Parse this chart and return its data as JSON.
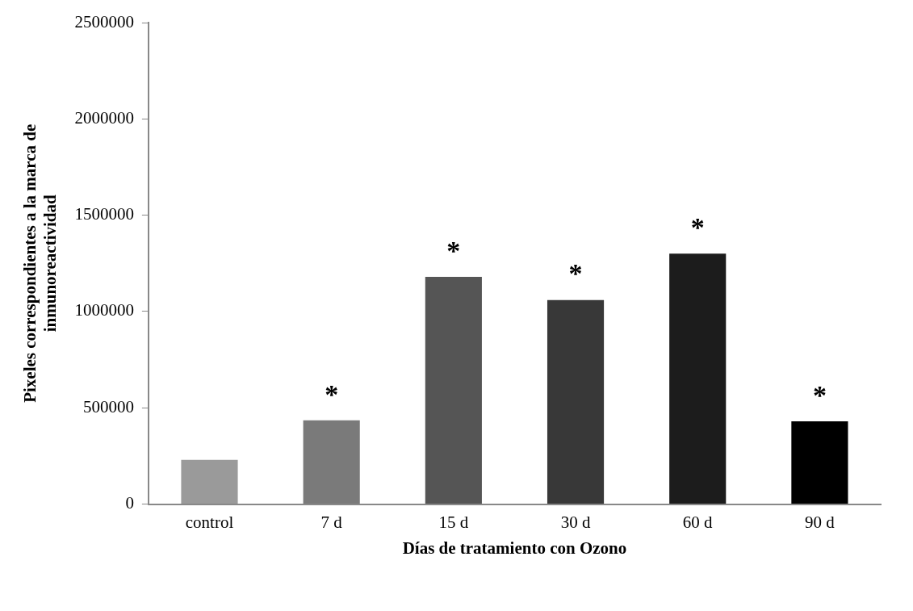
{
  "chart_data": {
    "type": "bar",
    "xlabel": "Días de tratamiento con Ozono",
    "ylabel": "Pixeles correspondientes a la marca de inmunoreactividad",
    "categories": [
      "control",
      "7 d",
      "15 d",
      "30 d",
      "60 d",
      "90 d"
    ],
    "values": [
      230000,
      435000,
      1180000,
      1060000,
      1300000,
      430000
    ],
    "colors": [
      "#9a9a9a",
      "#7a7a7a",
      "#555555",
      "#383838",
      "#1c1c1c",
      "#000000"
    ],
    "ylim": [
      0,
      2500000
    ],
    "yticks": [
      0,
      500000,
      1000000,
      1500000,
      2000000,
      2500000
    ],
    "grid": false,
    "legend": false,
    "annotations": [
      {
        "text": "*",
        "x": "7 d",
        "y": 435000
      },
      {
        "text": "*",
        "x": "15 d",
        "y": 1180000
      },
      {
        "text": "*",
        "x": "30 d",
        "y": 1060000
      },
      {
        "text": "*",
        "x": "60 d",
        "y": 1300000
      },
      {
        "text": "*",
        "x": "90 d",
        "y": 430000
      }
    ]
  }
}
